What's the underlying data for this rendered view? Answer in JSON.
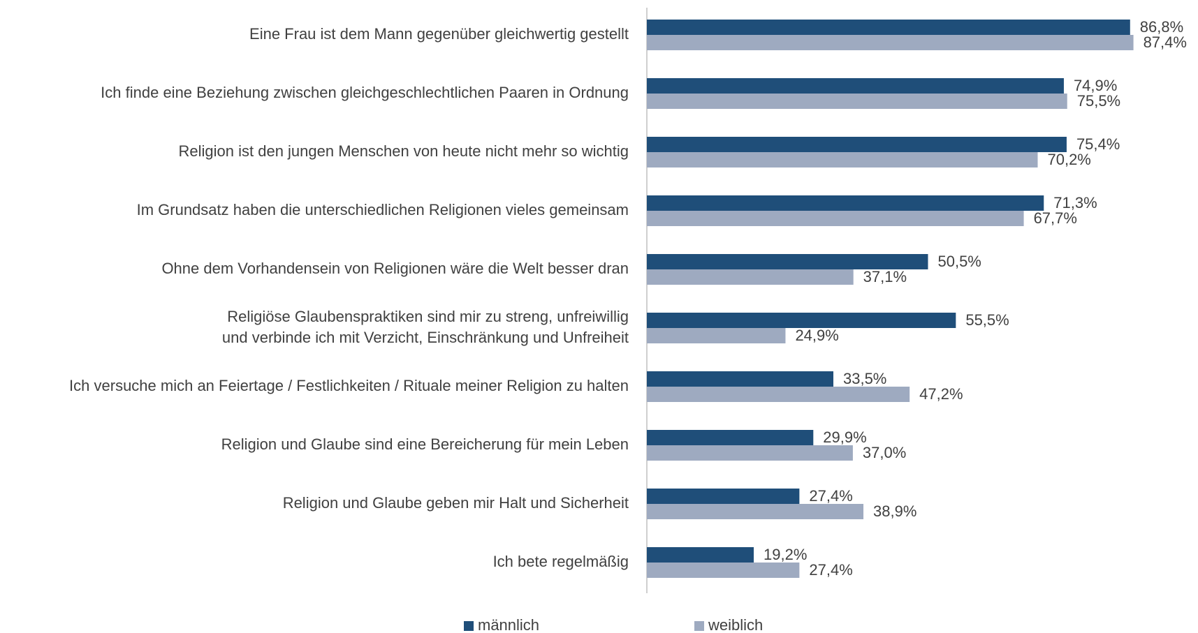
{
  "chart_data": {
    "type": "bar",
    "orientation": "horizontal",
    "categories": [
      "Eine Frau ist dem Mann gegenüber gleichwertig gestellt",
      "Ich finde eine Beziehung zwischen gleichgeschlechtlichen Paaren in Ordnung",
      "Religion ist den jungen Menschen von heute nicht mehr so wichtig",
      "Im Grundsatz haben die unterschiedlichen Religionen vieles gemeinsam",
      "Ohne dem Vorhandensein von Religionen wäre die Welt besser dran",
      "Religiöse Glaubenspraktiken sind mir zu streng, unfreiwillig\nund verbinde ich mit Verzicht, Einschränkung und Unfreiheit",
      "Ich versuche mich an Feiertage / Festlichkeiten / Rituale meiner Religion zu halten",
      "Religion und Glaube sind eine Bereicherung für mein Leben",
      "Religion und Glaube geben mir Halt und Sicherheit",
      "Ich bete regelmäßig"
    ],
    "series": [
      {
        "name": "männlich",
        "color": "#1f4e79",
        "values": [
          86.8,
          74.9,
          75.4,
          71.3,
          50.5,
          55.5,
          33.5,
          29.9,
          27.4,
          19.2
        ],
        "value_labels": [
          "86,8%",
          "74,9%",
          "75,4%",
          "71,3%",
          "50,5%",
          "55,5%",
          "33,5%",
          "29,9%",
          "27,4%",
          "19,2%"
        ]
      },
      {
        "name": "weiblich",
        "color": "#9eaac0",
        "values": [
          87.4,
          75.5,
          70.2,
          67.7,
          37.1,
          24.9,
          47.2,
          37.0,
          38.9,
          27.4
        ],
        "value_labels": [
          "87,4%",
          "75,5%",
          "70,2%",
          "67,7%",
          "37,1%",
          "24,9%",
          "47,2%",
          "37,0%",
          "38,9%",
          "27,4%"
        ]
      }
    ],
    "xlim": [
      0,
      100
    ],
    "legend": "bottom"
  }
}
